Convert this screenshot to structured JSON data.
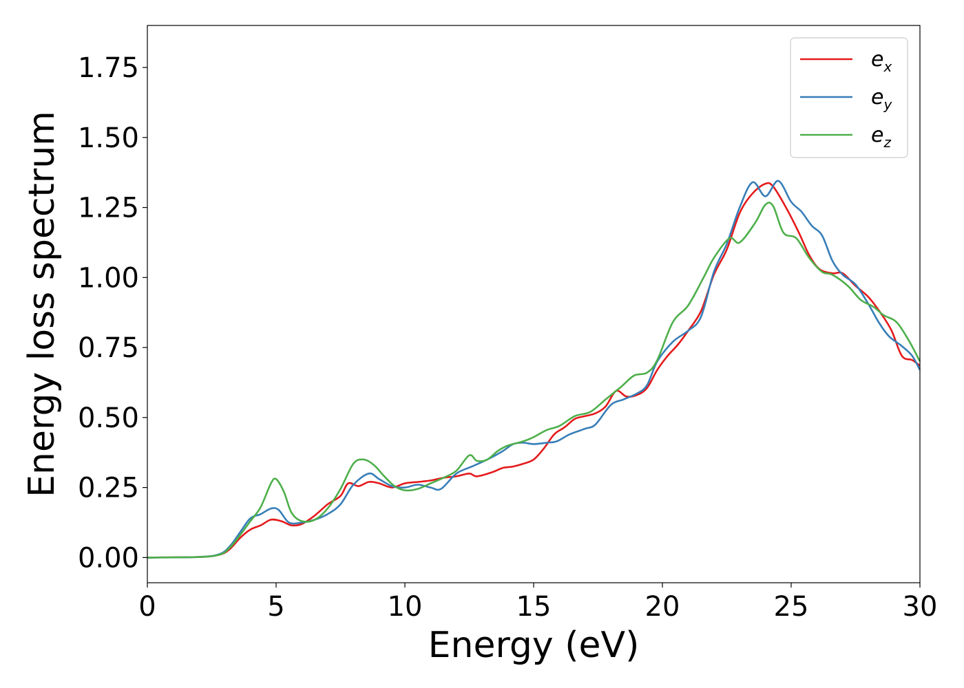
{
  "chart_data": {
    "type": "line",
    "title": "",
    "xlabel": "Energy (eV)",
    "ylabel": "Energy loss spectrum",
    "xlim": [
      0,
      30
    ],
    "ylim": [
      -0.09,
      1.9
    ],
    "xticks": [
      0,
      5,
      10,
      15,
      20,
      25,
      30
    ],
    "xtick_labels": [
      "0",
      "5",
      "10",
      "15",
      "20",
      "25",
      "30"
    ],
    "yticks": [
      0.0,
      0.25,
      0.5,
      0.75,
      1.0,
      1.25,
      1.5,
      1.75
    ],
    "ytick_labels": [
      "0.00",
      "0.25",
      "0.50",
      "0.75",
      "1.00",
      "1.25",
      "1.50",
      "1.75"
    ],
    "grid": false,
    "legend_position": "top-right",
    "series": [
      {
        "name": "e_x",
        "legend_base": "e",
        "legend_sub": "x",
        "color": "#e41a1c",
        "points": [
          [
            0,
            0.0
          ],
          [
            2,
            0.002
          ],
          [
            2.8,
            0.01
          ],
          [
            3.2,
            0.03
          ],
          [
            3.6,
            0.07
          ],
          [
            4.0,
            0.1
          ],
          [
            4.4,
            0.115
          ],
          [
            4.8,
            0.135
          ],
          [
            5.2,
            0.13
          ],
          [
            5.6,
            0.115
          ],
          [
            6.0,
            0.12
          ],
          [
            6.5,
            0.15
          ],
          [
            7.0,
            0.19
          ],
          [
            7.5,
            0.22
          ],
          [
            7.8,
            0.265
          ],
          [
            8.2,
            0.255
          ],
          [
            8.6,
            0.27
          ],
          [
            9.0,
            0.265
          ],
          [
            9.5,
            0.25
          ],
          [
            10.0,
            0.265
          ],
          [
            10.5,
            0.27
          ],
          [
            11.0,
            0.275
          ],
          [
            11.5,
            0.285
          ],
          [
            12.0,
            0.29
          ],
          [
            12.5,
            0.3
          ],
          [
            12.8,
            0.29
          ],
          [
            13.4,
            0.305
          ],
          [
            13.8,
            0.32
          ],
          [
            14.2,
            0.325
          ],
          [
            14.6,
            0.335
          ],
          [
            15.0,
            0.35
          ],
          [
            15.4,
            0.39
          ],
          [
            15.8,
            0.44
          ],
          [
            16.2,
            0.465
          ],
          [
            16.6,
            0.495
          ],
          [
            17.0,
            0.505
          ],
          [
            17.4,
            0.515
          ],
          [
            17.8,
            0.54
          ],
          [
            18.2,
            0.595
          ],
          [
            18.6,
            0.575
          ],
          [
            19.0,
            0.58
          ],
          [
            19.4,
            0.605
          ],
          [
            19.8,
            0.67
          ],
          [
            20.2,
            0.72
          ],
          [
            20.6,
            0.76
          ],
          [
            21.0,
            0.81
          ],
          [
            21.5,
            0.88
          ],
          [
            22.0,
            1.01
          ],
          [
            22.5,
            1.1
          ],
          [
            23.0,
            1.23
          ],
          [
            23.5,
            1.3
          ],
          [
            24.0,
            1.335
          ],
          [
            24.3,
            1.325
          ],
          [
            24.8,
            1.25
          ],
          [
            25.3,
            1.16
          ],
          [
            25.7,
            1.08
          ],
          [
            26.1,
            1.03
          ],
          [
            26.6,
            1.015
          ],
          [
            27.0,
            1.015
          ],
          [
            27.5,
            0.97
          ],
          [
            28.0,
            0.93
          ],
          [
            28.5,
            0.87
          ],
          [
            28.9,
            0.81
          ],
          [
            29.3,
            0.72
          ],
          [
            29.7,
            0.705
          ],
          [
            30.0,
            0.685
          ]
        ]
      },
      {
        "name": "e_y",
        "legend_base": "e",
        "legend_sub": "y",
        "color": "#377eb8",
        "points": [
          [
            0,
            0.0
          ],
          [
            2,
            0.002
          ],
          [
            2.8,
            0.012
          ],
          [
            3.2,
            0.04
          ],
          [
            3.6,
            0.09
          ],
          [
            4.0,
            0.14
          ],
          [
            4.4,
            0.155
          ],
          [
            4.8,
            0.175
          ],
          [
            5.1,
            0.17
          ],
          [
            5.5,
            0.125
          ],
          [
            6.0,
            0.125
          ],
          [
            6.5,
            0.135
          ],
          [
            7.0,
            0.155
          ],
          [
            7.5,
            0.19
          ],
          [
            8.0,
            0.26
          ],
          [
            8.6,
            0.3
          ],
          [
            9.0,
            0.28
          ],
          [
            9.5,
            0.255
          ],
          [
            10.0,
            0.25
          ],
          [
            10.5,
            0.26
          ],
          [
            11.0,
            0.25
          ],
          [
            11.4,
            0.245
          ],
          [
            12.0,
            0.3
          ],
          [
            12.6,
            0.325
          ],
          [
            13.2,
            0.35
          ],
          [
            13.8,
            0.38
          ],
          [
            14.2,
            0.405
          ],
          [
            14.6,
            0.41
          ],
          [
            15.0,
            0.405
          ],
          [
            15.5,
            0.41
          ],
          [
            15.9,
            0.415
          ],
          [
            16.4,
            0.44
          ],
          [
            17.0,
            0.46
          ],
          [
            17.4,
            0.475
          ],
          [
            18.0,
            0.545
          ],
          [
            18.5,
            0.565
          ],
          [
            19.0,
            0.585
          ],
          [
            19.4,
            0.615
          ],
          [
            19.8,
            0.7
          ],
          [
            20.4,
            0.77
          ],
          [
            21.0,
            0.81
          ],
          [
            21.5,
            0.86
          ],
          [
            22.0,
            1.02
          ],
          [
            22.5,
            1.12
          ],
          [
            23.0,
            1.25
          ],
          [
            23.5,
            1.34
          ],
          [
            24.0,
            1.29
          ],
          [
            24.5,
            1.345
          ],
          [
            25.0,
            1.27
          ],
          [
            25.4,
            1.235
          ],
          [
            25.8,
            1.185
          ],
          [
            26.2,
            1.15
          ],
          [
            26.6,
            1.06
          ],
          [
            27.0,
            1.01
          ],
          [
            27.5,
            0.975
          ],
          [
            28.0,
            0.905
          ],
          [
            28.4,
            0.84
          ],
          [
            28.8,
            0.79
          ],
          [
            29.3,
            0.755
          ],
          [
            29.7,
            0.72
          ],
          [
            30.0,
            0.67
          ]
        ]
      },
      {
        "name": "e_z",
        "legend_base": "e",
        "legend_sub": "z",
        "color": "#4daf4a",
        "points": [
          [
            0,
            0.0
          ],
          [
            2,
            0.002
          ],
          [
            2.8,
            0.01
          ],
          [
            3.2,
            0.035
          ],
          [
            3.6,
            0.08
          ],
          [
            4.0,
            0.13
          ],
          [
            4.4,
            0.18
          ],
          [
            4.8,
            0.265
          ],
          [
            5.0,
            0.28
          ],
          [
            5.3,
            0.235
          ],
          [
            5.6,
            0.16
          ],
          [
            6.0,
            0.13
          ],
          [
            6.5,
            0.135
          ],
          [
            7.0,
            0.175
          ],
          [
            7.5,
            0.245
          ],
          [
            8.0,
            0.335
          ],
          [
            8.4,
            0.35
          ],
          [
            8.8,
            0.33
          ],
          [
            9.2,
            0.29
          ],
          [
            9.6,
            0.255
          ],
          [
            10.0,
            0.24
          ],
          [
            10.5,
            0.245
          ],
          [
            11.0,
            0.265
          ],
          [
            11.5,
            0.285
          ],
          [
            12.0,
            0.31
          ],
          [
            12.5,
            0.365
          ],
          [
            12.8,
            0.345
          ],
          [
            13.2,
            0.35
          ],
          [
            13.6,
            0.38
          ],
          [
            14.0,
            0.4
          ],
          [
            14.6,
            0.415
          ],
          [
            15.0,
            0.43
          ],
          [
            15.5,
            0.455
          ],
          [
            16.0,
            0.47
          ],
          [
            16.6,
            0.505
          ],
          [
            17.2,
            0.52
          ],
          [
            17.8,
            0.565
          ],
          [
            18.4,
            0.61
          ],
          [
            18.9,
            0.65
          ],
          [
            19.4,
            0.66
          ],
          [
            19.8,
            0.705
          ],
          [
            20.4,
            0.84
          ],
          [
            21.0,
            0.9
          ],
          [
            21.6,
            1.0
          ],
          [
            22.0,
            1.07
          ],
          [
            22.6,
            1.14
          ],
          [
            23.0,
            1.125
          ],
          [
            23.6,
            1.195
          ],
          [
            24.0,
            1.26
          ],
          [
            24.3,
            1.255
          ],
          [
            24.7,
            1.16
          ],
          [
            25.2,
            1.14
          ],
          [
            25.7,
            1.07
          ],
          [
            26.2,
            1.02
          ],
          [
            26.6,
            1.01
          ],
          [
            27.2,
            0.97
          ],
          [
            27.7,
            0.92
          ],
          [
            28.2,
            0.895
          ],
          [
            28.6,
            0.865
          ],
          [
            29.1,
            0.84
          ],
          [
            29.6,
            0.77
          ],
          [
            30.0,
            0.7
          ]
        ]
      }
    ]
  }
}
